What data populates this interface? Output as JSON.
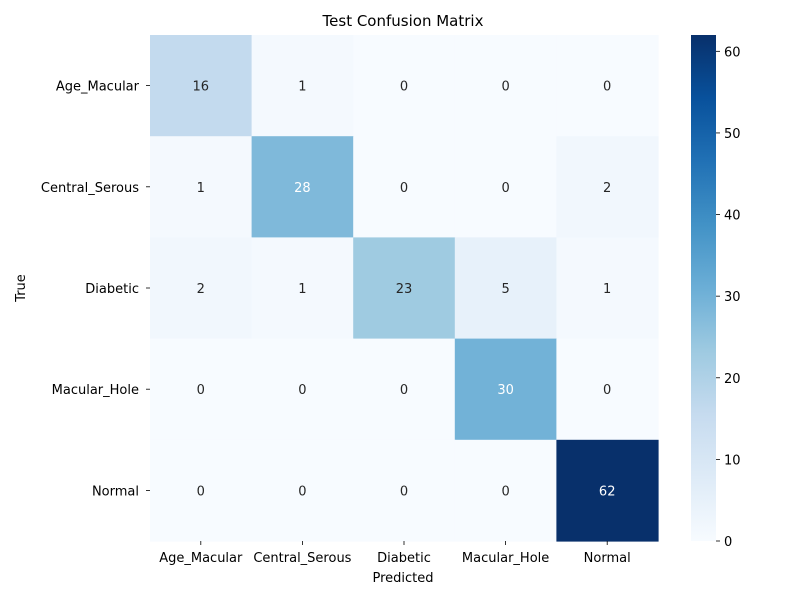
{
  "chart_data": {
    "type": "heatmap",
    "title": "Test Confusion Matrix",
    "xlabel": "Predicted",
    "ylabel": "True",
    "x_categories": [
      "Age_Macular",
      "Central_Serous",
      "Diabetic",
      "Macular_Hole",
      "Normal"
    ],
    "y_categories": [
      "Age_Macular",
      "Central_Serous",
      "Diabetic",
      "Macular_Hole",
      "Normal"
    ],
    "values": [
      [
        16,
        1,
        0,
        0,
        0
      ],
      [
        1,
        28,
        0,
        0,
        2
      ],
      [
        2,
        1,
        23,
        5,
        1
      ],
      [
        0,
        0,
        0,
        30,
        0
      ],
      [
        0,
        0,
        0,
        0,
        62
      ]
    ],
    "colormap": "Blues",
    "colorbar": {
      "range": [
        0,
        62
      ],
      "ticks": [
        0,
        10,
        20,
        30,
        40,
        50,
        60
      ]
    }
  }
}
